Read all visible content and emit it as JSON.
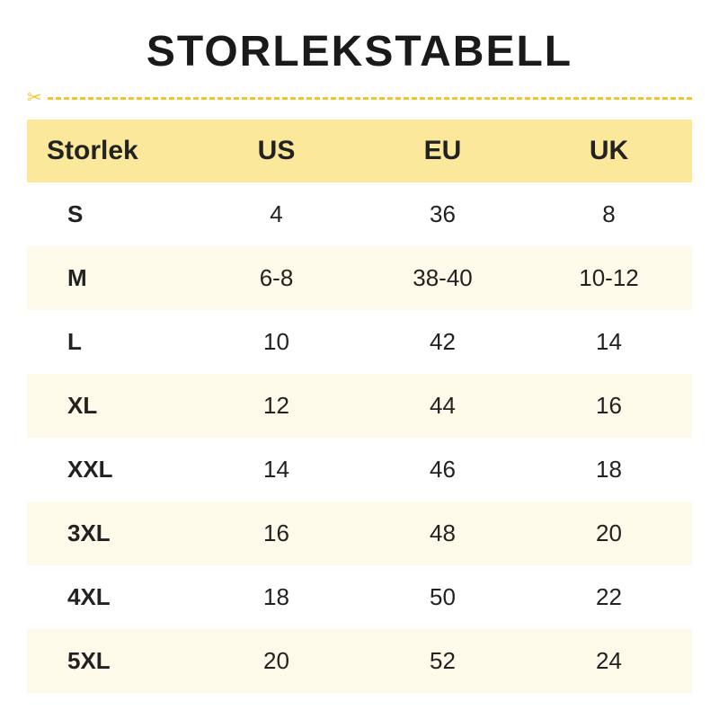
{
  "title": "STORLEKSTABELL",
  "title_fontsize": 48,
  "title_fontweight": 800,
  "title_letterspacing": 2,
  "divider_color": "#f4c430",
  "scissors_glyph": "✂",
  "table": {
    "header_bg": "#fce89a",
    "row_alt_bg": "#fefaea",
    "row_bg": "#ffffff",
    "header_fontsize": 30,
    "cell_fontsize": 26,
    "first_col_fontweight": 700,
    "columns": [
      "Storlek",
      "US",
      "EU",
      "UK"
    ],
    "rows": [
      [
        "S",
        "4",
        "36",
        "8"
      ],
      [
        "M",
        "6-8",
        "38-40",
        "10-12"
      ],
      [
        "L",
        "10",
        "42",
        "14"
      ],
      [
        "XL",
        "12",
        "44",
        "16"
      ],
      [
        "XXL",
        "14",
        "46",
        "18"
      ],
      [
        "3XL",
        "16",
        "48",
        "20"
      ],
      [
        "4XL",
        "18",
        "50",
        "22"
      ],
      [
        "5XL",
        "20",
        "52",
        "24"
      ]
    ]
  },
  "colors": {
    "text": "#1a1a1a",
    "background": "#ffffff"
  }
}
